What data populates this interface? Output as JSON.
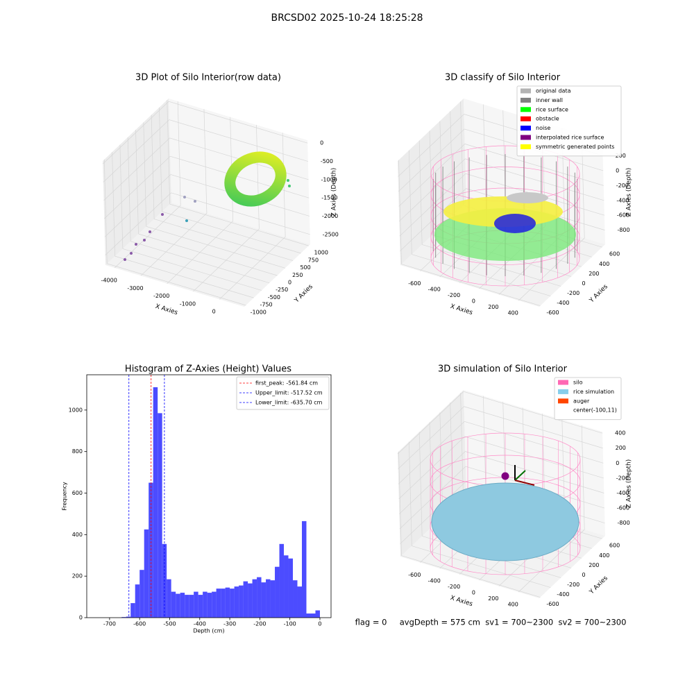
{
  "title": "BRCSD02 2025-10-24 18:25:28",
  "footer": "flag = 0     avgDepth = 575 cm  sv1 = 700~2300  sv2 = 700~2300",
  "chart_data": [
    {
      "type": "scatter3d",
      "title": "3D Plot of Silo Interior(row data)",
      "xlabel": "X Axies",
      "ylabel": "Y Axies",
      "zlabel": "Z Axies (Depth)",
      "xlim": [
        -4350,
        950
      ],
      "ylim": [
        -1050,
        1050
      ],
      "zlim": [
        -2770,
        80
      ],
      "xticks": [
        -4000,
        -3000,
        -2000,
        -1000,
        0
      ],
      "yticks": [
        -1000,
        -750,
        -500,
        -250,
        0,
        250,
        500,
        750,
        1000
      ],
      "zticks": [
        0,
        -500,
        -1000,
        -1500,
        -2000,
        -2500
      ]
    },
    {
      "type": "scatter3d",
      "title": "3D classify of Silo Interior",
      "xlabel": "X Axies",
      "ylabel": "Y Axies",
      "zlabel": "Z Axies (Depth)",
      "xlim": [
        -800,
        610
      ],
      "ylim": [
        -620,
        660
      ],
      "zlim": [
        -990,
        410
      ],
      "xticks": [
        -600,
        -400,
        -200,
        0,
        200,
        400
      ],
      "yticks": [
        -600,
        -400,
        -200,
        0,
        200,
        400,
        600
      ],
      "zticks": [
        200,
        0,
        -200,
        -400,
        -600,
        -800
      ],
      "legend_loc": "upper right",
      "legend": [
        {
          "name": "original data",
          "color": "#b3b3b3"
        },
        {
          "name": "inner wall",
          "color": "#808080"
        },
        {
          "name": "rice surface",
          "color": "#00ff00"
        },
        {
          "name": "obstacle",
          "color": "#ff0000"
        },
        {
          "name": "noise",
          "color": "#0000ff"
        },
        {
          "name": "interpolated rice surface",
          "color": "#800080"
        },
        {
          "name": "symmetric generated points",
          "color": "#ffff00"
        }
      ]
    },
    {
      "type": "histogram",
      "title": "Histogram of Z-Axies (Height) Values",
      "xlabel": "Depth (cm)",
      "ylabel": "Frequency",
      "color": "#4c4cff",
      "bins": [
        -660,
        -645,
        -630,
        -615,
        -600,
        -585,
        -570,
        -555,
        -540,
        -525,
        -510,
        -495,
        -480,
        -465,
        -450,
        -435,
        -420,
        -405,
        -390,
        -375,
        -360,
        -345,
        -330,
        -315,
        -300,
        -285,
        -270,
        -255,
        -240,
        -225,
        -210,
        -195,
        -180,
        -165,
        -150,
        -135,
        -120,
        -105,
        -90,
        -75,
        -60,
        -45,
        -30,
        -15,
        0
      ],
      "counts": [
        3,
        5,
        70,
        160,
        230,
        425,
        650,
        1110,
        985,
        355,
        185,
        125,
        115,
        120,
        110,
        110,
        125,
        110,
        125,
        120,
        125,
        140,
        140,
        145,
        140,
        150,
        155,
        175,
        165,
        185,
        195,
        170,
        185,
        180,
        245,
        355,
        300,
        285,
        180,
        150,
        465,
        20,
        20,
        35
      ],
      "xlim": [
        -776,
        37
      ],
      "ylim": [
        0,
        1170
      ],
      "xticks": [
        -700,
        -600,
        -500,
        -400,
        -300,
        -200,
        -100,
        0
      ],
      "yticks": [
        0,
        200,
        400,
        600,
        800,
        1000
      ],
      "legend_loc": "upper right",
      "vlines": [
        {
          "name": "first_peak: -561.84 cm",
          "value": -561.84,
          "color": "#ff0000"
        },
        {
          "name": "Upper_limit: -517.52 cm",
          "value": -517.52,
          "color": "#0000ff"
        },
        {
          "name": "Lower_limit: -635.70 cm",
          "value": -635.7,
          "color": "#0000ff"
        }
      ]
    },
    {
      "type": "scatter3d",
      "title": "3D simulation of Silo Interior",
      "xlabel": "X Axies",
      "ylabel": "Y Axies",
      "zlabel": "Z Axies (Depth)",
      "xlim": [
        -800,
        610
      ],
      "ylim": [
        -620,
        660
      ],
      "zlim": [
        -970,
        420
      ],
      "xticks": [
        -600,
        -400,
        -200,
        0,
        200,
        400
      ],
      "yticks": [
        -600,
        -400,
        -200,
        0,
        200,
        400,
        600
      ],
      "zticks": [
        400,
        200,
        0,
        -200,
        -400,
        -600,
        -800
      ],
      "legend_loc": "upper right",
      "legend": [
        {
          "name": "silo",
          "color": "#ff69b4"
        },
        {
          "name": "rice simulation",
          "color": "#87ceeb"
        },
        {
          "name": "auger",
          "color": "#ff4500"
        },
        {
          "name": "center(-100,11)"
        }
      ]
    }
  ]
}
